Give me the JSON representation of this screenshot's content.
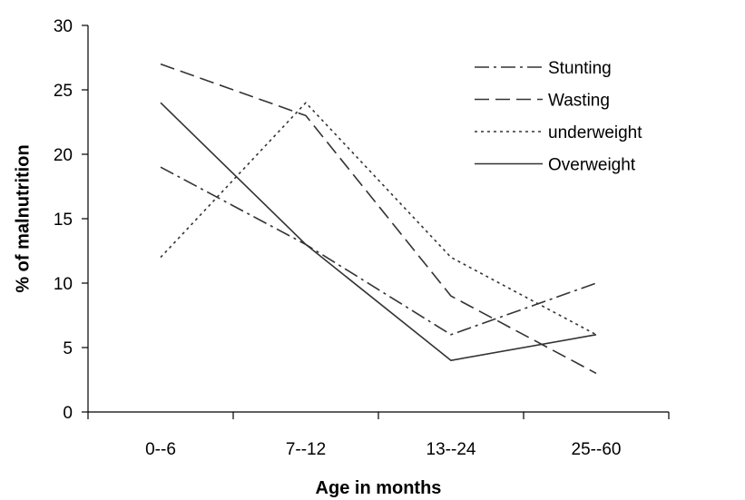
{
  "chart_data": {
    "type": "line",
    "title": "",
    "xlabel": "Age in months",
    "ylabel": "% of malnutrition",
    "categories": [
      "0--6",
      "7--12",
      "13--24",
      "25--60"
    ],
    "ylim": [
      0,
      30
    ],
    "yticks": [
      "0",
      "5",
      "10",
      "15",
      "20",
      "25",
      "30"
    ],
    "grid": false,
    "legend_position": "top-right",
    "series": [
      {
        "name": "Stunting",
        "values": [
          19,
          13,
          6,
          10
        ],
        "color": "#333333",
        "dash": "dash-dot"
      },
      {
        "name": "Wasting",
        "values": [
          27,
          23,
          9,
          3
        ],
        "color": "#333333",
        "dash": "long-dash"
      },
      {
        "name": "underweight",
        "values": [
          12,
          24,
          12,
          6
        ],
        "color": "#333333",
        "dash": "dotted"
      },
      {
        "name": "Overweight",
        "values": [
          24,
          13,
          4,
          6
        ],
        "color": "#333333",
        "dash": "solid"
      }
    ]
  }
}
